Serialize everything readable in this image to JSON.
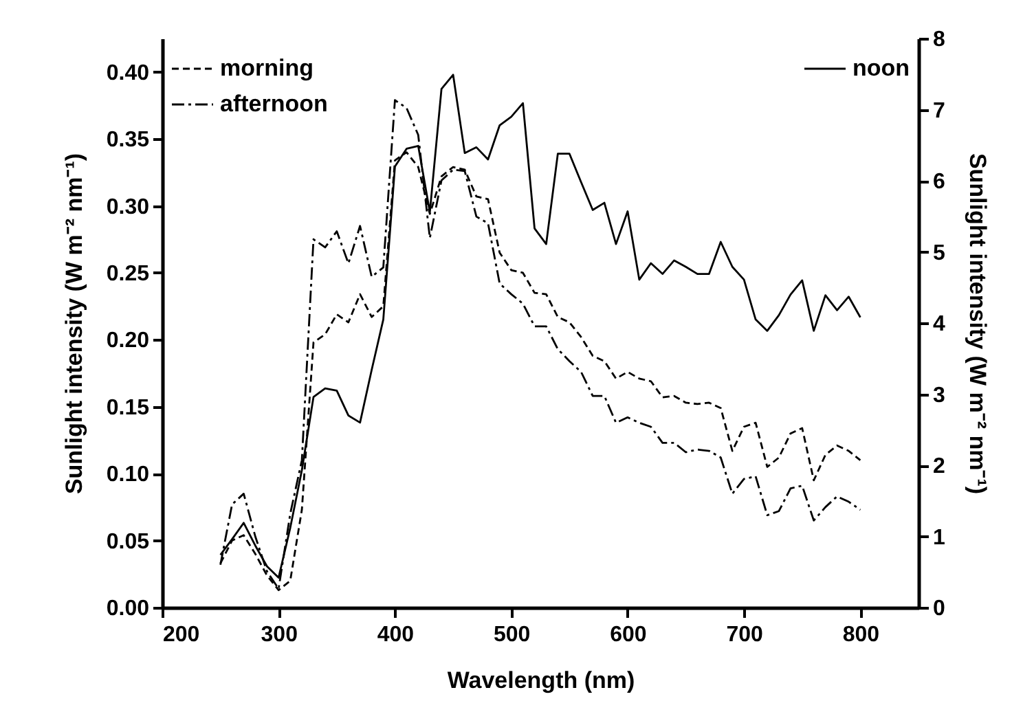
{
  "chart_data": {
    "type": "line",
    "xlabel": "Wavelength (nm)",
    "ylabel": "Sunlight intensity (W m⁻² nm⁻¹)",
    "y2label": "Sunlight intensity (W m⁻² nm⁻¹)",
    "x": [
      250,
      260,
      270,
      280,
      290,
      300,
      310,
      320,
      330,
      340,
      350,
      360,
      370,
      380,
      390,
      400,
      410,
      420,
      430,
      440,
      450,
      460,
      470,
      480,
      490,
      500,
      510,
      520,
      530,
      540,
      550,
      560,
      570,
      580,
      590,
      600,
      610,
      620,
      630,
      640,
      650,
      660,
      670,
      680,
      690,
      700,
      710,
      720,
      730,
      740,
      750,
      760,
      770,
      780,
      790,
      800
    ],
    "series": [
      {
        "name": "morning",
        "color": "#000000",
        "line_style": "dashed",
        "values": [
          0.033,
          0.05,
          0.054,
          0.04,
          0.024,
          0.013,
          0.02,
          0.073,
          0.198,
          0.204,
          0.219,
          0.213,
          0.234,
          0.217,
          0.225,
          0.334,
          0.34,
          0.329,
          0.294,
          0.322,
          0.329,
          0.327,
          0.307,
          0.305,
          0.265,
          0.252,
          0.25,
          0.235,
          0.234,
          0.217,
          0.213,
          0.202,
          0.188,
          0.184,
          0.171,
          0.176,
          0.171,
          0.169,
          0.157,
          0.158,
          0.153,
          0.152,
          0.153,
          0.149,
          0.117,
          0.135,
          0.138,
          0.105,
          0.112,
          0.13,
          0.134,
          0.095,
          0.114,
          0.121,
          0.117,
          0.11
        ]
      },
      {
        "name": "afternoon",
        "color": "#000000",
        "line_style": "dashdot",
        "values": [
          0.032,
          0.077,
          0.085,
          0.053,
          0.027,
          0.014,
          0.07,
          0.11,
          0.275,
          0.269,
          0.281,
          0.257,
          0.285,
          0.247,
          0.254,
          0.379,
          0.373,
          0.353,
          0.276,
          0.319,
          0.327,
          0.326,
          0.292,
          0.287,
          0.242,
          0.234,
          0.227,
          0.21,
          0.21,
          0.193,
          0.184,
          0.176,
          0.158,
          0.158,
          0.138,
          0.142,
          0.138,
          0.135,
          0.123,
          0.123,
          0.116,
          0.118,
          0.117,
          0.112,
          0.085,
          0.096,
          0.098,
          0.069,
          0.072,
          0.089,
          0.091,
          0.065,
          0.075,
          0.083,
          0.079,
          0.073
        ]
      },
      {
        "name": "noon",
        "color": "#000000",
        "line_style": "solid",
        "axis": "y2",
        "values": [
          0.74,
          0.96,
          1.19,
          0.87,
          0.58,
          0.42,
          1.12,
          1.93,
          2.96,
          3.08,
          3.05,
          2.7,
          2.6,
          3.34,
          4.05,
          6.2,
          6.45,
          6.49,
          5.56,
          7.29,
          7.49,
          6.39,
          6.47,
          6.3,
          6.78,
          6.9,
          7.09,
          5.33,
          5.11,
          6.38,
          6.38,
          5.98,
          5.59,
          5.69,
          5.11,
          5.57,
          4.61,
          4.84,
          4.69,
          4.88,
          4.79,
          4.69,
          4.69,
          5.14,
          4.79,
          4.61,
          4.05,
          3.89,
          4.11,
          4.4,
          4.6,
          3.89,
          4.39,
          4.18,
          4.37,
          4.08
        ]
      }
    ],
    "xlim": [
      200,
      850
    ],
    "xticks": [
      200,
      300,
      400,
      500,
      600,
      700,
      800
    ],
    "ylim": [
      0,
      0.425
    ],
    "yticks": [
      {
        "value": 0,
        "label": "0.00"
      },
      {
        "value": 0.05,
        "label": "0.05"
      },
      {
        "value": 0.1,
        "label": "0.10"
      },
      {
        "value": 0.15,
        "label": "0.15"
      },
      {
        "value": 0.2,
        "label": "0.20"
      },
      {
        "value": 0.25,
        "label": "0.25"
      },
      {
        "value": 0.3,
        "label": "0.30"
      },
      {
        "value": 0.35,
        "label": "0.35"
      },
      {
        "value": 0.4,
        "label": "0.40"
      }
    ],
    "y2lim": [
      0,
      8
    ],
    "y2ticks": [
      0,
      1,
      2,
      3,
      4,
      5,
      6,
      7,
      8
    ],
    "grid": false,
    "legend": "top left"
  }
}
